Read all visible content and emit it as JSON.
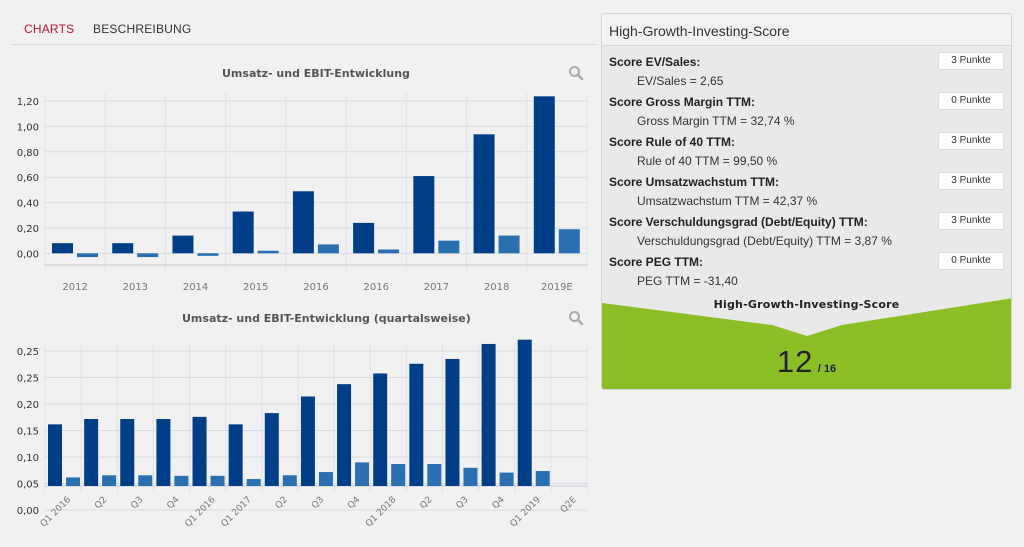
{
  "tabs": [
    {
      "label": "CHARTS",
      "active": true
    },
    {
      "label": "BESCHREIBUNG",
      "active": false
    }
  ],
  "chart_data": [
    {
      "type": "bar",
      "title": "Umsatz- und EBIT-Entwicklung",
      "categories": [
        "2012",
        "2013",
        "2014",
        "2015",
        "2016",
        "2016",
        "2017",
        "2018",
        "2019E"
      ],
      "series": [
        {
          "values": [
            0.08,
            0.08,
            0.14,
            0.33,
            0.49,
            0.24,
            0.61,
            0.94,
            1.24
          ],
          "color": "#003f87"
        },
        {
          "values": [
            -0.03,
            -0.03,
            -0.02,
            0.02,
            0.07,
            0.03,
            0.1,
            0.14,
            0.19
          ],
          "color": "#2a6fb0"
        }
      ],
      "yticks": [
        "1,20",
        "1,00",
        "0,80",
        "0,60",
        "0,40",
        "0,20",
        "0,00"
      ],
      "ylim": [
        -0.1,
        1.3
      ],
      "grid": true
    },
    {
      "type": "bar",
      "title": "Umsatz- und EBIT-Entwicklung (quartalsweise)",
      "categories": [
        "Q1 2016",
        "Q2",
        "Q3",
        "Q4",
        "Q1 2016",
        "Q1 2017",
        "Q2",
        "Q3",
        "Q4",
        "Q1 2018",
        "Q2",
        "Q3",
        "Q4",
        "Q1 2019",
        "Q2E"
      ],
      "series": [
        {
          "values": [
            0.115,
            0.125,
            0.125,
            0.125,
            0.129,
            0.115,
            0.136,
            0.167,
            0.19,
            0.21,
            0.228,
            0.237,
            0.265,
            0.273,
            null
          ],
          "color": "#003f87"
        },
        {
          "values": [
            0.016,
            0.02,
            0.02,
            0.019,
            0.019,
            0.013,
            0.02,
            0.026,
            0.044,
            0.041,
            0.041,
            0.034,
            0.025,
            0.028,
            null
          ],
          "color": "#2a6fb0"
        }
      ],
      "yticks": [
        "0,25",
        "0,25",
        "0,20",
        "0,15",
        "0,10",
        "0,05",
        "0,00"
      ],
      "ylim": [
        0,
        0.3
      ],
      "grid": true
    }
  ],
  "panel": {
    "title": "High-Growth-Investing-Score",
    "scores": [
      {
        "label": "Score EV/Sales:",
        "value": "EV/Sales = 2,65",
        "points": "3 Punkte"
      },
      {
        "label": "Score Gross Margin TTM:",
        "value": "Gross Margin TTM = 32,74 %",
        "points": "0 Punkte"
      },
      {
        "label": "Score Rule of 40 TTM:",
        "value": "Rule of 40 TTM = 99,50 %",
        "points": "3 Punkte"
      },
      {
        "label": "Score Umsatzwachstum TTM:",
        "value": "Umsatzwachstum TTM = 42,37 %",
        "points": "3 Punkte"
      },
      {
        "label": "Score Verschuldungsgrad (Debt/Equity) TTM:",
        "value": "Verschuldungsgrad (Debt/Equity) TTM = 3,87 %",
        "points": "3 Punkte"
      },
      {
        "label": "Score PEG TTM:",
        "value": "PEG TTM = -31,40",
        "points": "0 Punkte"
      }
    ],
    "result_title": "High-Growth-Investing-Score",
    "total": "12",
    "total_max": "/ 16",
    "accent_color": "#8cbe26"
  },
  "icons": {
    "zoom": "magnifier-icon"
  }
}
